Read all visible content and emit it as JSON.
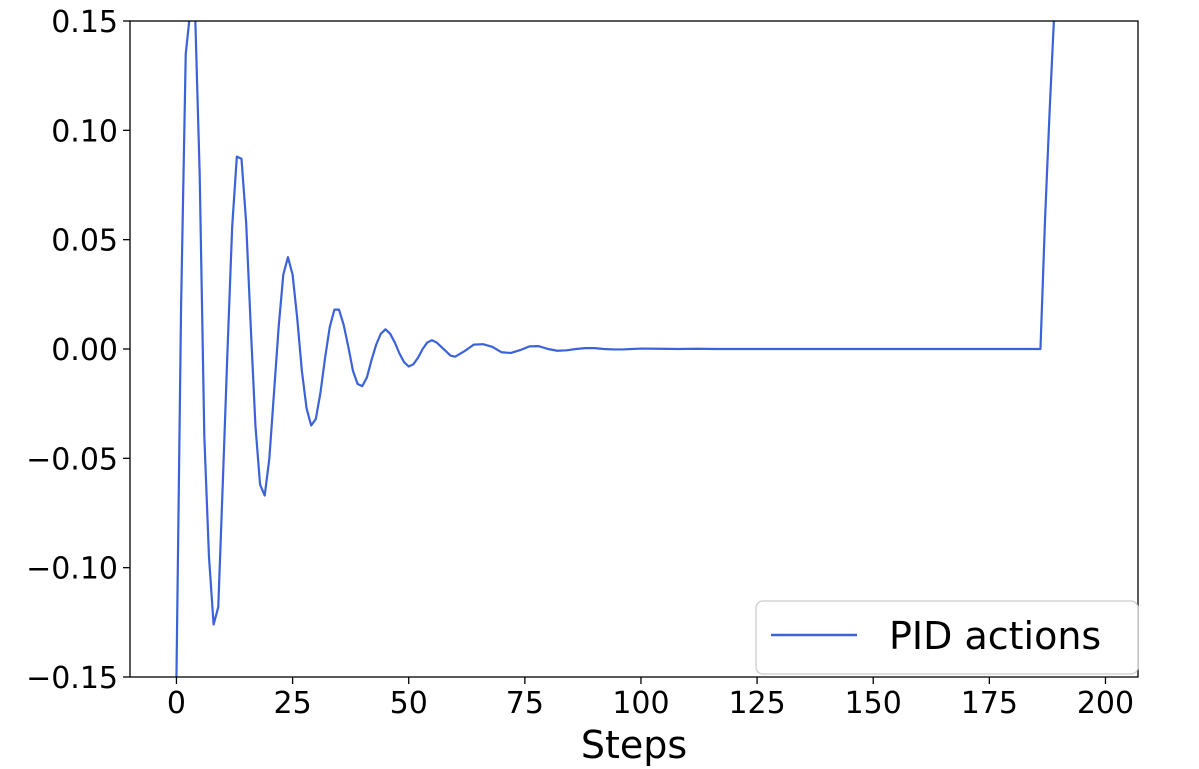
{
  "chart_data": {
    "type": "line",
    "xlabel": "Steps",
    "ylabel": "",
    "xlim": [
      -10,
      207
    ],
    "ylim": [
      -0.15,
      0.15
    ],
    "x_ticks": [
      0,
      25,
      50,
      75,
      100,
      125,
      150,
      175,
      200
    ],
    "x_tick_labels": [
      "0",
      "25",
      "50",
      "75",
      "100",
      "125",
      "150",
      "175",
      "200"
    ],
    "y_ticks": [
      -0.15,
      -0.1,
      -0.05,
      0.0,
      0.05,
      0.1,
      0.15
    ],
    "y_tick_labels": [
      "−0.15",
      "−0.10",
      "−0.05",
      "0.00",
      "0.05",
      "0.10",
      "0.15"
    ],
    "grid": false,
    "legend_position": "lower-right",
    "series": [
      {
        "name": "PID actions",
        "color": "#3b62d9",
        "x": [
          0,
          1,
          2,
          3,
          4,
          5,
          6,
          7,
          8,
          9,
          10,
          11,
          12,
          13,
          14,
          15,
          16,
          17,
          18,
          19,
          20,
          21,
          22,
          23,
          24,
          25,
          26,
          27,
          28,
          29,
          30,
          31,
          32,
          33,
          34,
          35,
          36,
          37,
          38,
          39,
          40,
          41,
          42,
          43,
          44,
          45,
          46,
          47,
          48,
          49,
          50,
          51,
          52,
          53,
          54,
          55,
          56,
          57,
          58,
          59,
          60,
          62,
          64,
          66,
          68,
          70,
          72,
          74,
          76,
          78,
          80,
          82,
          84,
          86,
          88,
          90,
          92,
          94,
          96,
          98,
          100,
          104,
          108,
          112,
          116,
          120,
          125,
          130,
          140,
          150,
          160,
          170,
          180,
          186,
          187,
          188,
          189
        ],
        "y": [
          -0.15,
          0.02,
          0.135,
          0.155,
          0.155,
          0.08,
          -0.04,
          -0.095,
          -0.126,
          -0.118,
          -0.06,
          0.0,
          0.056,
          0.088,
          0.087,
          0.058,
          0.01,
          -0.035,
          -0.062,
          -0.067,
          -0.05,
          -0.02,
          0.01,
          0.034,
          0.042,
          0.034,
          0.014,
          -0.01,
          -0.027,
          -0.035,
          -0.032,
          -0.02,
          -0.004,
          0.01,
          0.018,
          0.018,
          0.011,
          0.001,
          -0.01,
          -0.016,
          -0.017,
          -0.013,
          -0.005,
          0.002,
          0.007,
          0.009,
          0.007,
          0.003,
          -0.002,
          -0.006,
          -0.008,
          -0.007,
          -0.004,
          0.0,
          0.003,
          0.004,
          0.003,
          0.001,
          -0.001,
          -0.003,
          -0.0035,
          -0.001,
          0.002,
          0.0022,
          0.001,
          -0.0015,
          -0.0018,
          -0.0005,
          0.0012,
          0.0013,
          0.0,
          -0.0008,
          -0.0006,
          0.0,
          0.0004,
          0.0004,
          0.0,
          -0.0002,
          -0.0002,
          0.0,
          0.0002,
          0.0001,
          0.0,
          0.0001,
          0.0,
          0.0,
          0.0,
          0.0,
          0.0,
          0.0,
          0.0,
          0.0,
          0.0,
          0.0,
          0.06,
          0.11,
          0.155
        ]
      }
    ]
  }
}
